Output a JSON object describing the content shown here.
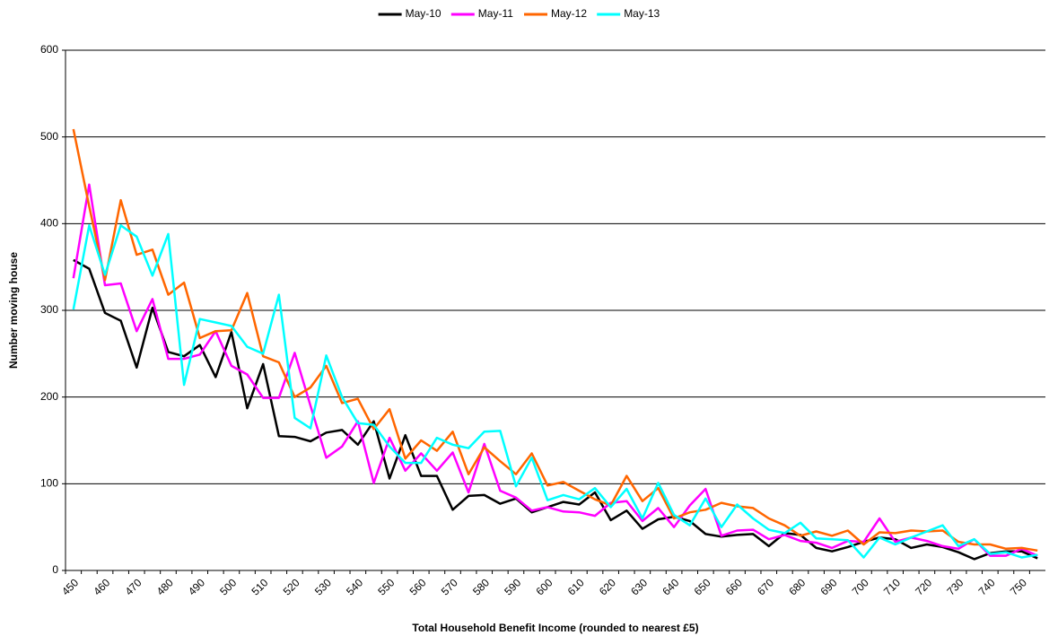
{
  "chart_data": {
    "type": "line",
    "title": null,
    "xlabel": "Total Household Benefit Income (rounded to nearest £5)",
    "ylabel": "Number moving house",
    "categories": [
      "450",
      null,
      "460",
      null,
      "470",
      null,
      "480",
      null,
      "490",
      null,
      "500",
      null,
      "510",
      null,
      "520",
      null,
      "530",
      null,
      "540",
      null,
      "550",
      null,
      "560",
      null,
      "570",
      null,
      "580",
      null,
      "590",
      null,
      "600",
      null,
      "610",
      null,
      "620",
      null,
      "630",
      null,
      "640",
      null,
      "650",
      null,
      "660",
      null,
      "670",
      null,
      "680",
      null,
      "690",
      null,
      "700",
      null,
      "710",
      null,
      "720",
      null,
      "730",
      null,
      "740",
      null,
      "750",
      null
    ],
    "series": [
      {
        "name": "May-10",
        "color": "#000000",
        "values": [
          358,
          348,
          297,
          288,
          234,
          303,
          252,
          247,
          260,
          223,
          275,
          187,
          238,
          155,
          154,
          149,
          159,
          162,
          145,
          172,
          106,
          156,
          109,
          109,
          70,
          86,
          87,
          77,
          83,
          67,
          73,
          79,
          76,
          90,
          58,
          69,
          48,
          59,
          62,
          57,
          42,
          39,
          41,
          42,
          28,
          43,
          41,
          26,
          22,
          27,
          33,
          38,
          36,
          26,
          30,
          27,
          21,
          13,
          20,
          22,
          22,
          14
        ]
      },
      {
        "name": "May-11",
        "color": "#ff00ff",
        "values": [
          337,
          445,
          329,
          331,
          276,
          313,
          244,
          244,
          249,
          276,
          236,
          226,
          199,
          199,
          251,
          190,
          130,
          143,
          172,
          101,
          153,
          115,
          135,
          115,
          136,
          90,
          146,
          92,
          84,
          69,
          73,
          68,
          67,
          63,
          78,
          80,
          57,
          72,
          50,
          75,
          94,
          40,
          46,
          47,
          36,
          41,
          34,
          32,
          26,
          34,
          33,
          60,
          33,
          38,
          34,
          28,
          25,
          36,
          17,
          17,
          25,
          17
        ]
      },
      {
        "name": "May-12",
        "color": "#ff6600",
        "values": [
          509,
          420,
          335,
          427,
          364,
          370,
          318,
          332,
          268,
          276,
          277,
          320,
          247,
          240,
          200,
          211,
          236,
          193,
          198,
          163,
          186,
          129,
          150,
          138,
          160,
          111,
          142,
          126,
          111,
          135,
          98,
          102,
          92,
          82,
          75,
          109,
          80,
          95,
          60,
          67,
          70,
          78,
          74,
          72,
          60,
          52,
          40,
          45,
          40,
          46,
          30,
          44,
          43,
          46,
          45,
          46,
          33,
          30,
          30,
          25,
          26,
          23
        ]
      },
      {
        "name": "May-13",
        "color": "#00ffff",
        "values": [
          301,
          398,
          341,
          398,
          385,
          340,
          388,
          214,
          290,
          286,
          282,
          258,
          250,
          318,
          176,
          164,
          248,
          200,
          170,
          168,
          143,
          124,
          124,
          153,
          145,
          141,
          160,
          161,
          97,
          130,
          81,
          87,
          82,
          95,
          73,
          94,
          60,
          101,
          64,
          52,
          83,
          50,
          76,
          60,
          47,
          43,
          55,
          37,
          36,
          35,
          15,
          38,
          30,
          38,
          45,
          52,
          28,
          36,
          19,
          21,
          15,
          18
        ]
      }
    ],
    "ylim": [
      0,
      600
    ],
    "yticks": [
      0,
      100,
      200,
      300,
      400,
      500,
      600
    ],
    "grid": true,
    "legend": "top"
  }
}
